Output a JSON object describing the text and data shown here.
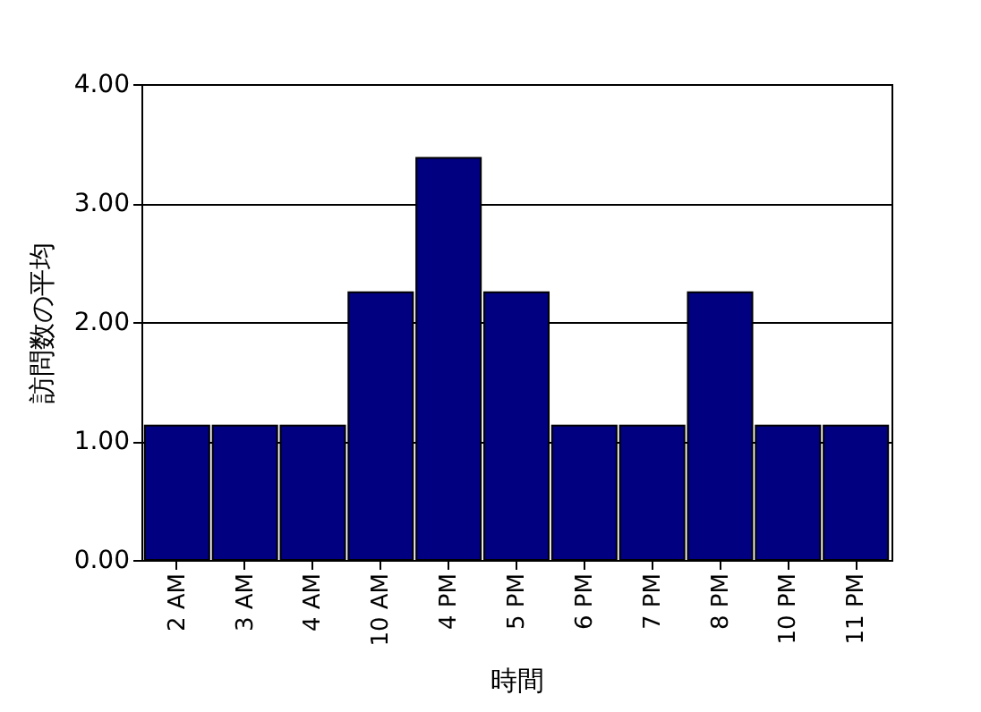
{
  "chart_data": {
    "type": "bar",
    "xlabel": "時間",
    "ylabel": "訪問数の平均",
    "categories": [
      "2 AM",
      "3 AM",
      "4 AM",
      "10 AM",
      "4 PM",
      "5 PM",
      "6 PM",
      "7 PM",
      "8 PM",
      "10 PM",
      "11 PM"
    ],
    "values": [
      1.13,
      1.13,
      1.13,
      2.25,
      3.38,
      2.25,
      1.13,
      1.13,
      2.25,
      1.13,
      1.13
    ],
    "color": "#000080",
    "ylim": [
      0,
      4
    ],
    "yticks": [
      {
        "value": 0,
        "label": "0.00"
      },
      {
        "value": 1,
        "label": "1.00"
      },
      {
        "value": 2,
        "label": "2.00"
      },
      {
        "value": 3,
        "label": "3.00"
      },
      {
        "value": 4,
        "label": "4.00"
      }
    ],
    "grid": "y"
  }
}
